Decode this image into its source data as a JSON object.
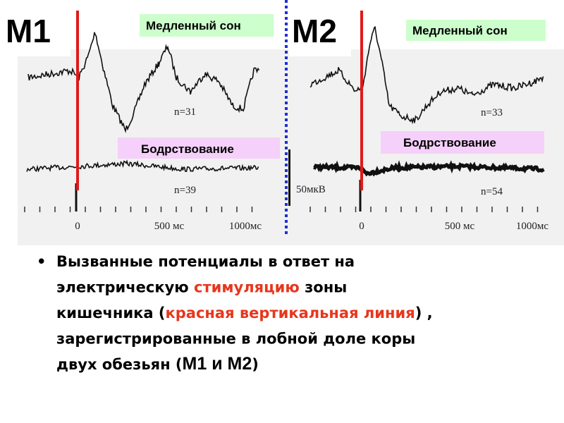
{
  "panels": [
    {
      "label": "М1",
      "sleep_label": "Медленный сон",
      "wake_label": "Бодрствование",
      "n_sleep": "n=31",
      "n_wake": "n=39",
      "axis_labels": [
        "0",
        "500 мс",
        "1000мс"
      ]
    },
    {
      "label": "М2",
      "sleep_label": "Медленный сон",
      "wake_label": "Бодрствование",
      "n_sleep": "n=33",
      "n_wake": "n=54",
      "scale": "50мкВ",
      "axis_labels": [
        "0",
        "500 мс",
        "1000мс"
      ]
    }
  ],
  "caption": {
    "lines": [
      [
        {
          "text": "Вызванные потенциалы в ответ на"
        }
      ],
      [
        {
          "text": "электрическую "
        },
        {
          "text": "стимуляцию",
          "color": "#e8361c"
        },
        {
          "text": " зоны"
        }
      ],
      [
        {
          "text": "кишечника ("
        },
        {
          "text": "красная вертикальная линия",
          "color": "#e8361c"
        },
        {
          "text": ") ,"
        }
      ],
      [
        {
          "text": "зарегистрированные в лобной доле  коры"
        }
      ],
      [
        {
          "text": "двух обезьян ("
        },
        {
          "text": "М1 и М2",
          "bold": true
        },
        {
          "text": ")"
        }
      ]
    ]
  }
}
